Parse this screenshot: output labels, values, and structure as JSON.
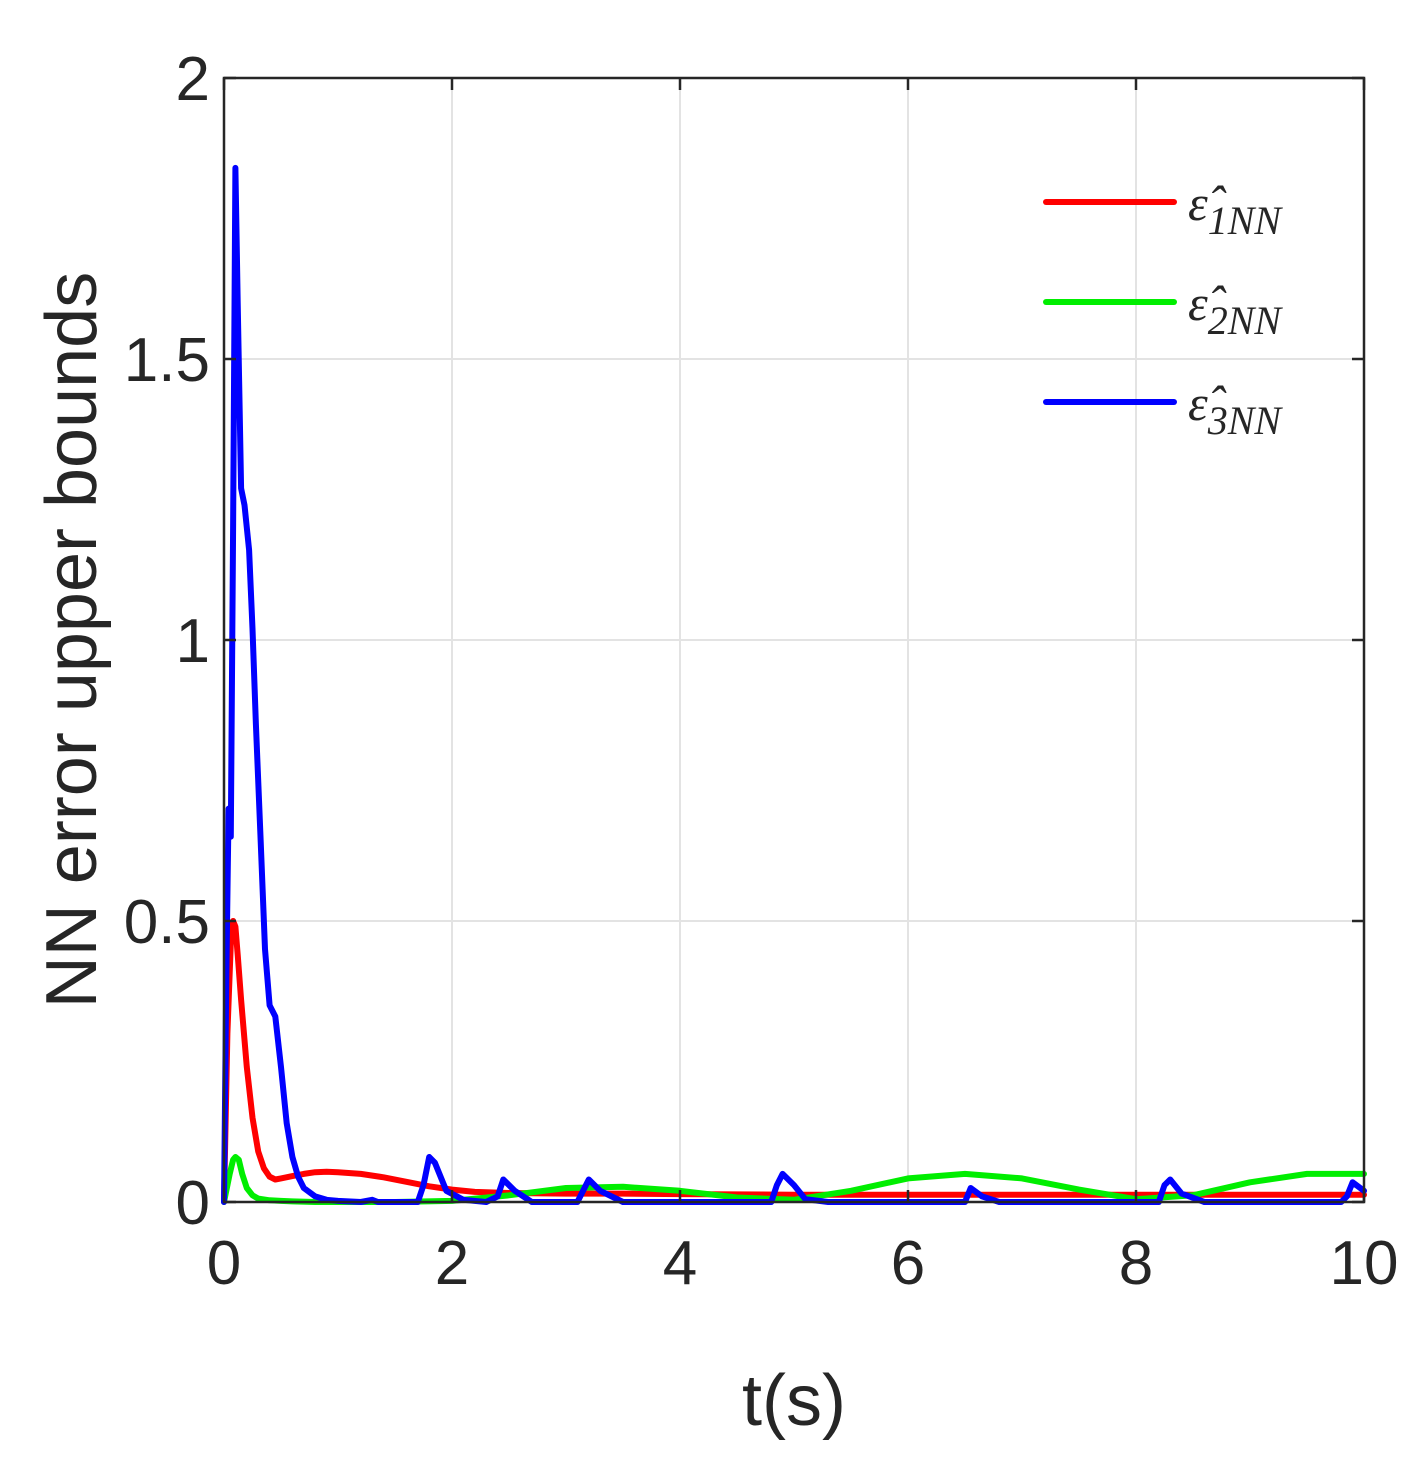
{
  "chart_data": {
    "type": "line",
    "title": "",
    "xlabel": "t(s)",
    "ylabel": "NN error upper bounds",
    "xlim": [
      0,
      10
    ],
    "ylim": [
      0,
      2
    ],
    "xticks": [
      "0",
      "2",
      "4",
      "6",
      "8",
      "10"
    ],
    "yticks": [
      "0",
      "0.5",
      "1",
      "1.5",
      "2"
    ],
    "grid": true,
    "legend_position": "top-right",
    "series": [
      {
        "name": "ε̂1NN",
        "name_base": "ε̂",
        "name_sub": "1NN",
        "color": "#ff0000",
        "x": [
          0,
          0.03,
          0.06,
          0.08,
          0.1,
          0.12,
          0.15,
          0.2,
          0.25,
          0.3,
          0.35,
          0.4,
          0.45,
          0.5,
          0.6,
          0.7,
          0.8,
          0.9,
          1.0,
          1.2,
          1.4,
          1.6,
          1.8,
          2.0,
          2.2,
          2.5,
          3.0,
          3.5,
          4.0,
          5.0,
          6.0,
          7.0,
          8.0,
          9.0,
          10.0
        ],
        "y": [
          0,
          0.3,
          0.46,
          0.5,
          0.49,
          0.44,
          0.36,
          0.24,
          0.15,
          0.09,
          0.06,
          0.045,
          0.04,
          0.042,
          0.046,
          0.05,
          0.053,
          0.054,
          0.053,
          0.05,
          0.044,
          0.036,
          0.028,
          0.022,
          0.018,
          0.016,
          0.015,
          0.015,
          0.014,
          0.013,
          0.013,
          0.013,
          0.013,
          0.013,
          0.013
        ]
      },
      {
        "name": "ε̂2NN",
        "name_base": "ε̂",
        "name_sub": "2NN",
        "color": "#00ee00",
        "x": [
          0,
          0.05,
          0.08,
          0.1,
          0.13,
          0.16,
          0.2,
          0.25,
          0.3,
          0.4,
          0.5,
          0.6,
          0.8,
          1.0,
          1.5,
          2.0,
          2.5,
          3.0,
          3.5,
          4.0,
          4.5,
          5.0,
          5.5,
          6.0,
          6.5,
          7.0,
          7.5,
          8.0,
          8.5,
          9.0,
          9.5,
          10.0
        ],
        "y": [
          0,
          0.05,
          0.075,
          0.08,
          0.075,
          0.05,
          0.025,
          0.012,
          0.006,
          0.003,
          0.002,
          0.001,
          0.0,
          0.0,
          0.0,
          0.002,
          0.012,
          0.025,
          0.027,
          0.02,
          0.008,
          0.004,
          0.02,
          0.042,
          0.05,
          0.042,
          0.022,
          0.005,
          0.012,
          0.035,
          0.05,
          0.05
        ]
      },
      {
        "name": "ε̂3NN",
        "name_base": "ε̂",
        "name_sub": "3NN",
        "color": "#0000ff",
        "x": [
          0,
          0.02,
          0.04,
          0.06,
          0.08,
          0.1,
          0.12,
          0.15,
          0.18,
          0.22,
          0.25,
          0.28,
          0.32,
          0.36,
          0.4,
          0.45,
          0.5,
          0.55,
          0.6,
          0.65,
          0.7,
          0.8,
          0.9,
          1.0,
          1.2,
          1.3,
          1.35,
          1.5,
          1.7,
          1.75,
          1.8,
          1.85,
          1.95,
          2.1,
          2.3,
          2.4,
          2.45,
          2.55,
          2.7,
          3.1,
          3.2,
          3.3,
          3.5,
          4.8,
          4.85,
          4.9,
          5.0,
          5.1,
          5.3,
          6.5,
          6.55,
          6.65,
          6.8,
          8.2,
          8.25,
          8.3,
          8.4,
          8.6,
          9.8,
          9.85,
          9.9,
          10.0
        ],
        "y": [
          0,
          0.4,
          0.7,
          0.65,
          1.2,
          1.84,
          1.6,
          1.27,
          1.24,
          1.16,
          1.02,
          0.85,
          0.65,
          0.45,
          0.35,
          0.33,
          0.24,
          0.14,
          0.08,
          0.045,
          0.025,
          0.01,
          0.004,
          0.002,
          0.0,
          0.004,
          0.0,
          0.0,
          0.0,
          0.03,
          0.08,
          0.07,
          0.02,
          0.004,
          0.0,
          0.01,
          0.04,
          0.02,
          0.0,
          0.0,
          0.04,
          0.02,
          0.0,
          0.0,
          0.03,
          0.05,
          0.03,
          0.005,
          0.0,
          0.0,
          0.025,
          0.01,
          0.0,
          0.0,
          0.03,
          0.04,
          0.015,
          0.0,
          0.0,
          0.01,
          0.035,
          0.02
        ]
      }
    ]
  }
}
